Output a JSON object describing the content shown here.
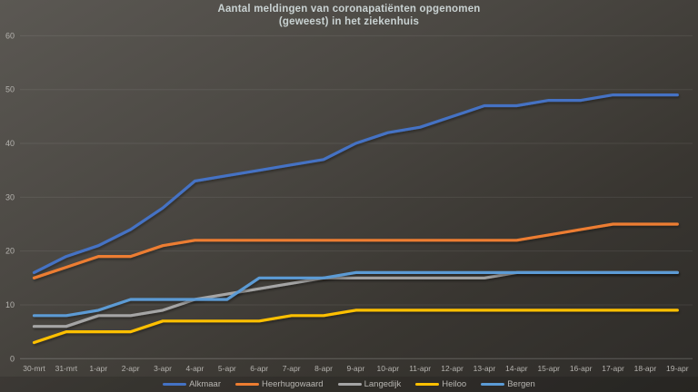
{
  "chart_data": {
    "type": "line",
    "title": "Aantal meldingen van coronapatiënten opgenomen (geweest) in het ziekenhuis",
    "title_lines": [
      "Aantal meldingen van coronapatiënten opgenomen",
      "(geweest) in het ziekenhuis"
    ],
    "categories": [
      "30-mrt",
      "31-mrt",
      "1-apr",
      "2-apr",
      "3-apr",
      "4-apr",
      "5-apr",
      "6-apr",
      "7-apr",
      "8-apr",
      "9-apr",
      "10-apr",
      "11-apr",
      "12-apr",
      "13-apr",
      "14-apr",
      "15-apr",
      "16-apr",
      "17-apr",
      "18-apr",
      "19-apr"
    ],
    "series": [
      {
        "name": "Alkmaar",
        "color": "#4472C4",
        "values": [
          16,
          19,
          21,
          24,
          28,
          33,
          34,
          35,
          36,
          37,
          40,
          42,
          43,
          45,
          47,
          47,
          48,
          48,
          49,
          49,
          49
        ]
      },
      {
        "name": "Heerhugowaard",
        "color": "#ED7D31",
        "values": [
          15,
          17,
          19,
          19,
          21,
          22,
          22,
          22,
          22,
          22,
          22,
          22,
          22,
          22,
          22,
          22,
          23,
          24,
          25,
          25,
          25
        ]
      },
      {
        "name": "Langedijk",
        "color": "#A5A5A5",
        "values": [
          6,
          6,
          8,
          8,
          9,
          11,
          12,
          13,
          14,
          15,
          15,
          15,
          15,
          15,
          15,
          16,
          16,
          16,
          16,
          16,
          16
        ]
      },
      {
        "name": "Heiloo",
        "color": "#FFC000",
        "values": [
          3,
          5,
          5,
          5,
          7,
          7,
          7,
          7,
          8,
          8,
          9,
          9,
          9,
          9,
          9,
          9,
          9,
          9,
          9,
          9,
          9
        ]
      },
      {
        "name": "Bergen",
        "color": "#5B9BD5",
        "values": [
          8,
          8,
          9,
          11,
          11,
          11,
          11,
          15,
          15,
          15,
          16,
          16,
          16,
          16,
          16,
          16,
          16,
          16,
          16,
          16,
          16
        ]
      }
    ],
    "xlabel": "",
    "ylabel": "",
    "ylim": [
      0,
      60
    ],
    "y_ticks": [
      0,
      10,
      20,
      30,
      40,
      50,
      60
    ],
    "grid": "horizontal",
    "legend_position": "bottom"
  },
  "colors": {
    "title_text": "#c9d2d2",
    "tick_text": "#b5b3af",
    "legend_text": "#b8b6b2",
    "gridline": "rgba(255,255,255,0.08)",
    "axis_line": "rgba(255,255,255,0.22)",
    "background_top": "#5b5853",
    "background_bottom": "#2d2b28"
  }
}
